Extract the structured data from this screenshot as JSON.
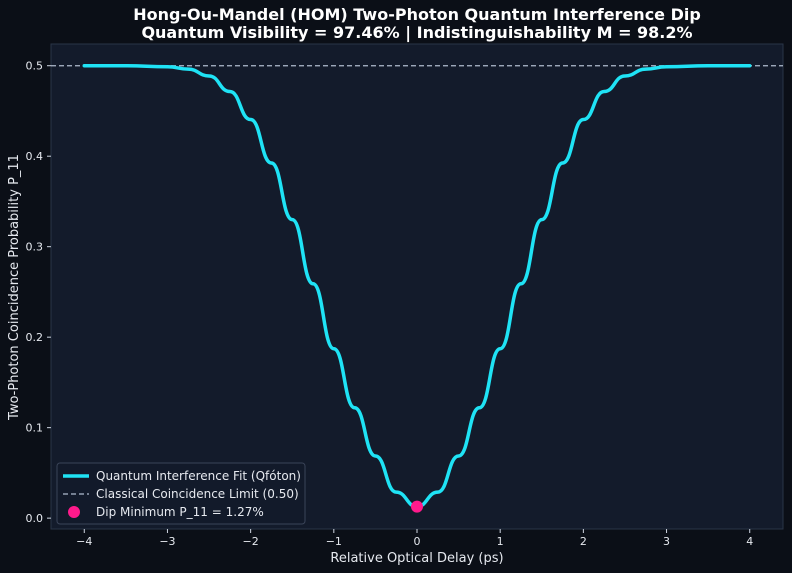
{
  "chart_data": {
    "type": "line",
    "title": "Hong-Ou-Mandel (HOM) Two-Photon Quantum Interference Dip",
    "subtitle": "Quantum Visibility = 97.46% | Indistinguishability M = 98.2%",
    "xlabel": "Relative Optical Delay (ps)",
    "ylabel": "Two-Photon Coincidence Probability P_11",
    "xlim": [
      -4.4,
      4.4
    ],
    "ylim": [
      -0.012,
      0.524
    ],
    "xticks": [
      -4,
      -3,
      -2,
      -1,
      0,
      1,
      2,
      3,
      4
    ],
    "xtick_labels": [
      "−4",
      "−3",
      "−2",
      "−1",
      "0",
      "1",
      "2",
      "3",
      "4"
    ],
    "yticks": [
      0.0,
      0.1,
      0.2,
      0.3,
      0.4,
      0.5
    ],
    "ytick_labels": [
      "0.0",
      "0.1",
      "0.2",
      "0.3",
      "0.4",
      "0.5"
    ],
    "grid": false,
    "legend_position": "lower-left",
    "series": [
      {
        "name": "Quantum Interference Fit (Qfóton)",
        "kind": "line",
        "color": "#1fe3f5",
        "x": [
          -4.0,
          -3.5,
          -3.0,
          -2.75,
          -2.5,
          -2.25,
          -2.0,
          -1.75,
          -1.5,
          -1.25,
          -1.0,
          -0.75,
          -0.5,
          -0.25,
          0.0,
          0.25,
          0.5,
          0.75,
          1.0,
          1.25,
          1.5,
          1.75,
          2.0,
          2.25,
          2.5,
          2.75,
          3.0,
          3.5,
          4.0
        ],
        "y": [
          0.5,
          0.4999,
          0.4988,
          0.4962,
          0.4887,
          0.4715,
          0.4405,
          0.3925,
          0.3299,
          0.259,
          0.1872,
          0.122,
          0.0687,
          0.0287,
          0.0127,
          0.0287,
          0.0687,
          0.122,
          0.1872,
          0.259,
          0.3299,
          0.3925,
          0.4405,
          0.4715,
          0.4887,
          0.4962,
          0.4988,
          0.4999,
          0.5
        ]
      },
      {
        "name": "Classical Coincidence Limit (0.50)",
        "kind": "hline",
        "y": 0.5,
        "color": "#b0bccf"
      },
      {
        "name": "Dip Minimum P_11 = 1.27%",
        "kind": "scatter",
        "color": "#ff1a8c",
        "x": [
          0.0
        ],
        "y": [
          0.0127
        ]
      }
    ]
  }
}
